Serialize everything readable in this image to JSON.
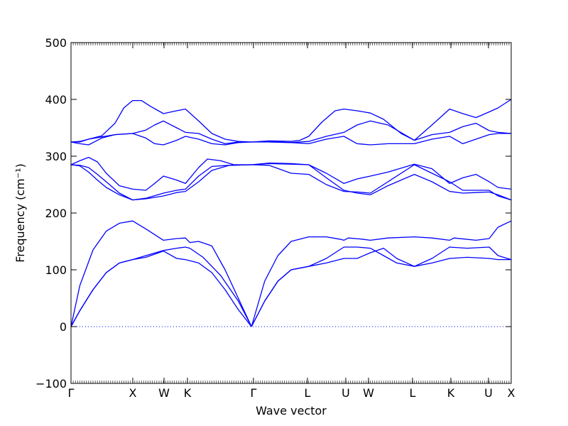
{
  "chart_data": {
    "type": "line",
    "xlabel": "Wave vector",
    "ylabel": "Frequency (cm⁻¹)",
    "ylim": [
      -100,
      500
    ],
    "yticks": [
      -100,
      0,
      100,
      200,
      300,
      400,
      500
    ],
    "xlim": [
      0,
      1
    ],
    "xticks": [
      {
        "label": "Γ",
        "pos": 0.0
      },
      {
        "label": "X",
        "pos": 0.1403
      },
      {
        "label": "W",
        "pos": 0.2113
      },
      {
        "label": "K",
        "pos": 0.2645
      },
      {
        "label": "Γ",
        "pos": 0.4145
      },
      {
        "label": "L",
        "pos": 0.5371
      },
      {
        "label": "U",
        "pos": 0.6242
      },
      {
        "label": "W",
        "pos": 0.6758
      },
      {
        "label": "L",
        "pos": 0.7758
      },
      {
        "label": "K",
        "pos": 0.8629
      },
      {
        "label": "U",
        "pos": 0.9484
      },
      {
        "label": "X",
        "pos": 1.0
      }
    ],
    "zero_line": {
      "y": 0,
      "style": "dotted"
    },
    "series_color": "#0000ff",
    "series": [
      {
        "x": [
          0,
          0.02,
          0.05,
          0.08,
          0.11,
          0.14,
          0.17,
          0.21,
          0.24,
          0.26,
          0.27,
          0.3,
          0.34,
          0.38,
          0.41
        ],
        "values": [
          0,
          28,
          65,
          95,
          112,
          118,
          125,
          134,
          138,
          140,
          138,
          122,
          90,
          45,
          0
        ]
      },
      {
        "x": [
          0.41,
          0.44,
          0.47,
          0.5,
          0.54,
          0.58,
          0.62,
          0.65,
          0.68,
          0.71,
          0.74,
          0.78,
          0.82,
          0.86,
          0.9,
          0.95,
          0.97,
          1.0
        ],
        "values": [
          0,
          45,
          80,
          100,
          106,
          112,
          120,
          120,
          130,
          138,
          120,
          106,
          112,
          120,
          122,
          120,
          118,
          118
        ]
      },
      {
        "x": [
          0,
          0.02,
          0.05,
          0.08,
          0.11,
          0.14,
          0.17,
          0.21,
          0.24,
          0.26,
          0.29,
          0.32,
          0.35,
          0.38,
          0.41
        ],
        "values": [
          0,
          28,
          65,
          95,
          112,
          118,
          122,
          133,
          120,
          118,
          112,
          95,
          65,
          30,
          0
        ]
      },
      {
        "x": [
          0.41,
          0.44,
          0.47,
          0.5,
          0.54,
          0.58,
          0.62,
          0.65,
          0.68,
          0.71,
          0.74,
          0.78,
          0.82,
          0.86,
          0.9,
          0.95,
          0.97,
          1.0
        ],
        "values": [
          0,
          45,
          80,
          100,
          106,
          120,
          140,
          140,
          138,
          125,
          112,
          106,
          120,
          140,
          138,
          140,
          125,
          118
        ]
      },
      {
        "x": [
          0,
          0.02,
          0.05,
          0.08,
          0.11,
          0.14,
          0.17,
          0.21,
          0.24,
          0.26,
          0.27,
          0.29,
          0.32,
          0.35,
          0.38,
          0.41
        ],
        "values": [
          0,
          72,
          135,
          168,
          182,
          186,
          172,
          152,
          155,
          156,
          148,
          150,
          142,
          100,
          50,
          0
        ]
      },
      {
        "x": [
          0.41,
          0.44,
          0.47,
          0.5,
          0.54,
          0.58,
          0.61,
          0.62,
          0.63,
          0.66,
          0.68,
          0.72,
          0.78,
          0.82,
          0.86,
          0.87,
          0.92,
          0.95,
          0.97,
          1.0
        ],
        "values": [
          0,
          80,
          125,
          150,
          158,
          158,
          154,
          152,
          156,
          154,
          152,
          156,
          158,
          156,
          152,
          156,
          152,
          155,
          175,
          186
        ]
      },
      {
        "x": [
          0,
          0.02,
          0.04,
          0.06,
          0.08,
          0.11,
          0.14,
          0.17,
          0.21,
          0.24,
          0.26,
          0.29,
          0.32,
          0.36,
          0.41
        ],
        "values": [
          285,
          283,
          272,
          258,
          245,
          232,
          223,
          226,
          235,
          240,
          242,
          265,
          282,
          284,
          285
        ]
      },
      {
        "x": [
          0.41,
          0.45,
          0.5,
          0.54,
          0.58,
          0.62,
          0.65,
          0.68,
          0.72,
          0.78,
          0.82,
          0.86,
          0.89,
          0.92,
          0.95,
          0.97,
          1.0
        ],
        "values": [
          285,
          284,
          270,
          268,
          250,
          238,
          237,
          235,
          255,
          285,
          270,
          255,
          240,
          240,
          240,
          230,
          223
        ]
      },
      {
        "x": [
          0,
          0.02,
          0.04,
          0.06,
          0.08,
          0.11,
          0.14,
          0.17,
          0.21,
          0.24,
          0.26,
          0.29,
          0.32,
          0.36,
          0.41
        ],
        "values": [
          285,
          284,
          280,
          268,
          255,
          235,
          223,
          225,
          230,
          236,
          238,
          255,
          275,
          284,
          285
        ]
      },
      {
        "x": [
          0.41,
          0.45,
          0.5,
          0.54,
          0.58,
          0.62,
          0.65,
          0.68,
          0.72,
          0.78,
          0.82,
          0.86,
          0.89,
          0.92,
          0.95,
          0.97,
          1.0
        ],
        "values": [
          285,
          287,
          286,
          285,
          262,
          240,
          235,
          232,
          248,
          268,
          255,
          238,
          235,
          236,
          237,
          232,
          223
        ]
      },
      {
        "x": [
          0,
          0.02,
          0.04,
          0.06,
          0.08,
          0.11,
          0.14,
          0.17,
          0.19,
          0.21,
          0.24,
          0.26,
          0.29,
          0.31,
          0.34,
          0.37,
          0.41
        ],
        "values": [
          285,
          292,
          298,
          290,
          270,
          248,
          242,
          240,
          252,
          265,
          258,
          252,
          280,
          295,
          292,
          285,
          285
        ]
      },
      {
        "x": [
          0.41,
          0.45,
          0.5,
          0.54,
          0.58,
          0.62,
          0.65,
          0.68,
          0.72,
          0.78,
          0.82,
          0.86,
          0.89,
          0.92,
          0.95,
          0.97,
          1.0
        ],
        "values": [
          285,
          288,
          287,
          285,
          270,
          252,
          260,
          265,
          272,
          286,
          278,
          252,
          262,
          268,
          255,
          245,
          242
        ]
      },
      {
        "x": [
          0,
          0.02,
          0.04,
          0.07,
          0.1,
          0.14,
          0.17,
          0.19,
          0.21,
          0.24,
          0.26,
          0.29,
          0.32,
          0.35,
          0.38,
          0.41
        ],
        "values": [
          325,
          325,
          330,
          334,
          338,
          340,
          332,
          322,
          320,
          328,
          335,
          330,
          322,
          320,
          324,
          325
        ]
      },
      {
        "x": [
          0.41,
          0.45,
          0.5,
          0.54,
          0.58,
          0.62,
          0.65,
          0.68,
          0.72,
          0.78,
          0.82,
          0.86,
          0.89,
          0.92,
          0.95,
          0.97,
          1.0
        ],
        "values": [
          325,
          325,
          324,
          322,
          330,
          335,
          322,
          320,
          322,
          322,
          330,
          335,
          322,
          330,
          338,
          340,
          340
        ]
      },
      {
        "x": [
          0,
          0.02,
          0.04,
          0.07,
          0.1,
          0.14,
          0.17,
          0.19,
          0.21,
          0.24,
          0.26,
          0.29,
          0.32,
          0.35,
          0.38,
          0.41
        ],
        "values": [
          325,
          322,
          320,
          332,
          338,
          340,
          346,
          355,
          362,
          350,
          342,
          340,
          330,
          322,
          325,
          325
        ]
      },
      {
        "x": [
          0.41,
          0.45,
          0.5,
          0.54,
          0.58,
          0.62,
          0.65,
          0.68,
          0.72,
          0.78,
          0.82,
          0.86,
          0.89,
          0.92,
          0.95,
          0.97,
          1.0
        ],
        "values": [
          325,
          326,
          324,
          326,
          335,
          342,
          355,
          362,
          355,
          328,
          338,
          342,
          352,
          358,
          345,
          342,
          340
        ]
      },
      {
        "x": [
          0,
          0.02,
          0.04,
          0.07,
          0.1,
          0.12,
          0.14,
          0.16,
          0.18,
          0.21,
          0.24,
          0.26,
          0.29,
          0.32,
          0.35,
          0.38,
          0.41
        ],
        "values": [
          325,
          326,
          330,
          336,
          358,
          385,
          398,
          398,
          388,
          375,
          380,
          383,
          362,
          340,
          330,
          326,
          325
        ]
      },
      {
        "x": [
          0.41,
          0.45,
          0.5,
          0.52,
          0.54,
          0.57,
          0.6,
          0.62,
          0.65,
          0.68,
          0.71,
          0.75,
          0.78,
          0.82,
          0.86,
          0.89,
          0.92,
          0.95,
          0.97,
          1.0
        ],
        "values": [
          325,
          327,
          326,
          328,
          335,
          360,
          380,
          383,
          380,
          376,
          365,
          340,
          328,
          355,
          383,
          375,
          368,
          378,
          385,
          400
        ]
      }
    ]
  }
}
